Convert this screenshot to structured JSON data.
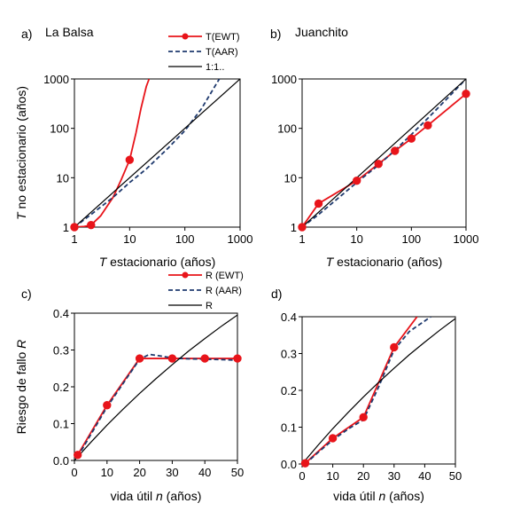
{
  "panels": [
    {
      "letter": "a)",
      "title": "La Balsa",
      "xlabel_italic": "T",
      "xlabel_rest": " estacionario (años)",
      "ylabel_italic": "T",
      "ylabel_rest": " no estacionario (años)"
    },
    {
      "letter": "b)",
      "title": "Juanchito",
      "xlabel_italic": "T",
      "xlabel_rest": " estacionario (años)"
    },
    {
      "letter": "c)",
      "title": "",
      "xlabel_plain": "vida útil ",
      "xlabel_italic": "n",
      "xlabel_after": " (años)",
      "ylabel_plain": "Riesgo de fallo ",
      "ylabel_italic": "R"
    },
    {
      "letter": "d)",
      "title": "",
      "xlabel_plain": "vida útil ",
      "xlabel_italic": "n",
      "xlabel_after": " (años)"
    }
  ],
  "legend_top": [
    "T(EWT)",
    "T(AAR)",
    "1:1.."
  ],
  "legend_bottom": [
    "R (EWT)",
    "R (AAR)",
    "R"
  ],
  "colors": {
    "ewt": "#e8141a",
    "aar": "#1f3a6e",
    "reference": "#000000"
  },
  "chart_data": [
    {
      "id": "a",
      "type": "line",
      "title": "La Balsa",
      "xscale": "log",
      "yscale": "log",
      "xlim": [
        1,
        1000
      ],
      "ylim": [
        1,
        1000
      ],
      "xticks": [
        "1",
        "10",
        "100",
        "1000"
      ],
      "yticks": [
        "1",
        "10",
        "100",
        "1000"
      ],
      "xlabel": "T estacionario (años)",
      "ylabel": "T no estacionario (años)",
      "series": [
        {
          "name": "T(EWT)",
          "style": "solid-markers",
          "x": [
            1,
            1.5,
            2,
            3,
            5,
            7,
            10,
            13,
            16,
            20,
            22.5
          ],
          "y": [
            1,
            1.03,
            1.1,
            1.7,
            4,
            9,
            23,
            80,
            250,
            700,
            1000
          ],
          "markers": [
            [
              1,
              1
            ],
            [
              2,
              1.1
            ],
            [
              10,
              23
            ]
          ]
        },
        {
          "name": "T(AAR)",
          "style": "dashed",
          "x": [
            1,
            2,
            5,
            10,
            20,
            50,
            100,
            200,
            420
          ],
          "y": [
            1,
            1.8,
            4,
            8,
            15,
            40,
            90,
            250,
            1000
          ]
        },
        {
          "name": "1:1..",
          "style": "solid",
          "x": [
            1,
            1000
          ],
          "y": [
            1,
            1000
          ]
        }
      ]
    },
    {
      "id": "b",
      "type": "line",
      "title": "Juanchito",
      "xscale": "log",
      "yscale": "log",
      "xlim": [
        1,
        1000
      ],
      "ylim": [
        1,
        1000
      ],
      "xticks": [
        "1",
        "10",
        "100",
        "1000"
      ],
      "yticks": [
        "1",
        "10",
        "100",
        "1000"
      ],
      "xlabel": "T estacionario (años)",
      "ylabel": "",
      "series": [
        {
          "name": "T(EWT)",
          "style": "solid-markers",
          "x": [
            1,
            2,
            10,
            25,
            50,
            100,
            200,
            1000
          ],
          "y": [
            1,
            3,
            8.7,
            19,
            35,
            62,
            115,
            500
          ],
          "markers": [
            [
              1,
              1
            ],
            [
              2,
              3
            ],
            [
              10,
              8.7
            ],
            [
              25,
              19
            ],
            [
              50,
              35
            ],
            [
              100,
              62
            ],
            [
              200,
              115
            ],
            [
              1000,
              500
            ]
          ]
        },
        {
          "name": "T(AAR)",
          "style": "dashed",
          "x": [
            1,
            2,
            5,
            10,
            25,
            50,
            100,
            200,
            500,
            1000
          ],
          "y": [
            1,
            1.8,
            4.2,
            8,
            18,
            36,
            75,
            160,
            450,
            1000
          ]
        },
        {
          "name": "1:1..",
          "style": "solid",
          "x": [
            1,
            1000
          ],
          "y": [
            1,
            1000
          ]
        }
      ]
    },
    {
      "id": "c",
      "type": "line",
      "title": "",
      "xlim": [
        0,
        50
      ],
      "ylim": [
        0,
        0.4
      ],
      "xticks": [
        "0",
        "10",
        "20",
        "30",
        "40",
        "50"
      ],
      "yticks": [
        "0.0",
        "0.1",
        "0.2",
        "0.3",
        "0.4"
      ],
      "xlabel": "vida útil n (años)",
      "ylabel": "Riesgo de fallo R",
      "series": [
        {
          "name": "R (EWT)",
          "style": "solid-markers",
          "x": [
            1,
            10,
            20,
            30,
            40,
            50
          ],
          "y": [
            0.015,
            0.15,
            0.277,
            0.277,
            0.277,
            0.277
          ],
          "markers": [
            [
              1,
              0.015
            ],
            [
              10,
              0.15
            ],
            [
              20,
              0.277
            ],
            [
              30,
              0.277
            ],
            [
              40,
              0.277
            ],
            [
              50,
              0.277
            ]
          ]
        },
        {
          "name": "R (AAR)",
          "style": "dashed",
          "x": [
            1,
            5,
            10,
            15,
            20,
            23,
            27,
            30,
            35,
            40,
            45,
            50
          ],
          "y": [
            0.01,
            0.07,
            0.145,
            0.21,
            0.275,
            0.288,
            0.283,
            0.278,
            0.276,
            0.275,
            0.274,
            0.272
          ]
        },
        {
          "name": "R",
          "style": "solid",
          "x": [
            0,
            5,
            10,
            15,
            20,
            25,
            30,
            35,
            40,
            45,
            50
          ],
          "y": [
            0,
            0.049,
            0.096,
            0.14,
            0.182,
            0.222,
            0.26,
            0.297,
            0.331,
            0.364,
            0.395
          ]
        }
      ]
    },
    {
      "id": "d",
      "type": "line",
      "title": "",
      "xlim": [
        0,
        50
      ],
      "ylim": [
        0,
        0.4
      ],
      "xticks": [
        "0",
        "10",
        "20",
        "30",
        "40",
        "50"
      ],
      "yticks": [
        "0.0",
        "0.1",
        "0.2",
        "0.3",
        "0.4"
      ],
      "xlabel": "vida útil n (años)",
      "ylabel": "",
      "series": [
        {
          "name": "R (EWT)",
          "style": "solid-markers",
          "x": [
            1,
            10,
            20,
            30,
            37.5
          ],
          "y": [
            0.002,
            0.07,
            0.127,
            0.317,
            0.4
          ],
          "markers": [
            [
              1,
              0.002
            ],
            [
              10,
              0.07
            ],
            [
              20,
              0.127
            ],
            [
              30,
              0.317
            ]
          ]
        },
        {
          "name": "R (AAR)",
          "style": "dashed",
          "x": [
            1,
            5,
            10,
            15,
            20,
            25,
            30,
            35,
            42
          ],
          "y": [
            0,
            0.03,
            0.065,
            0.095,
            0.12,
            0.21,
            0.31,
            0.36,
            0.4
          ]
        },
        {
          "name": "R",
          "style": "solid",
          "x": [
            0,
            5,
            10,
            15,
            20,
            25,
            30,
            35,
            40,
            45,
            50
          ],
          "y": [
            0,
            0.049,
            0.096,
            0.14,
            0.182,
            0.222,
            0.26,
            0.297,
            0.331,
            0.364,
            0.395
          ]
        }
      ]
    }
  ]
}
